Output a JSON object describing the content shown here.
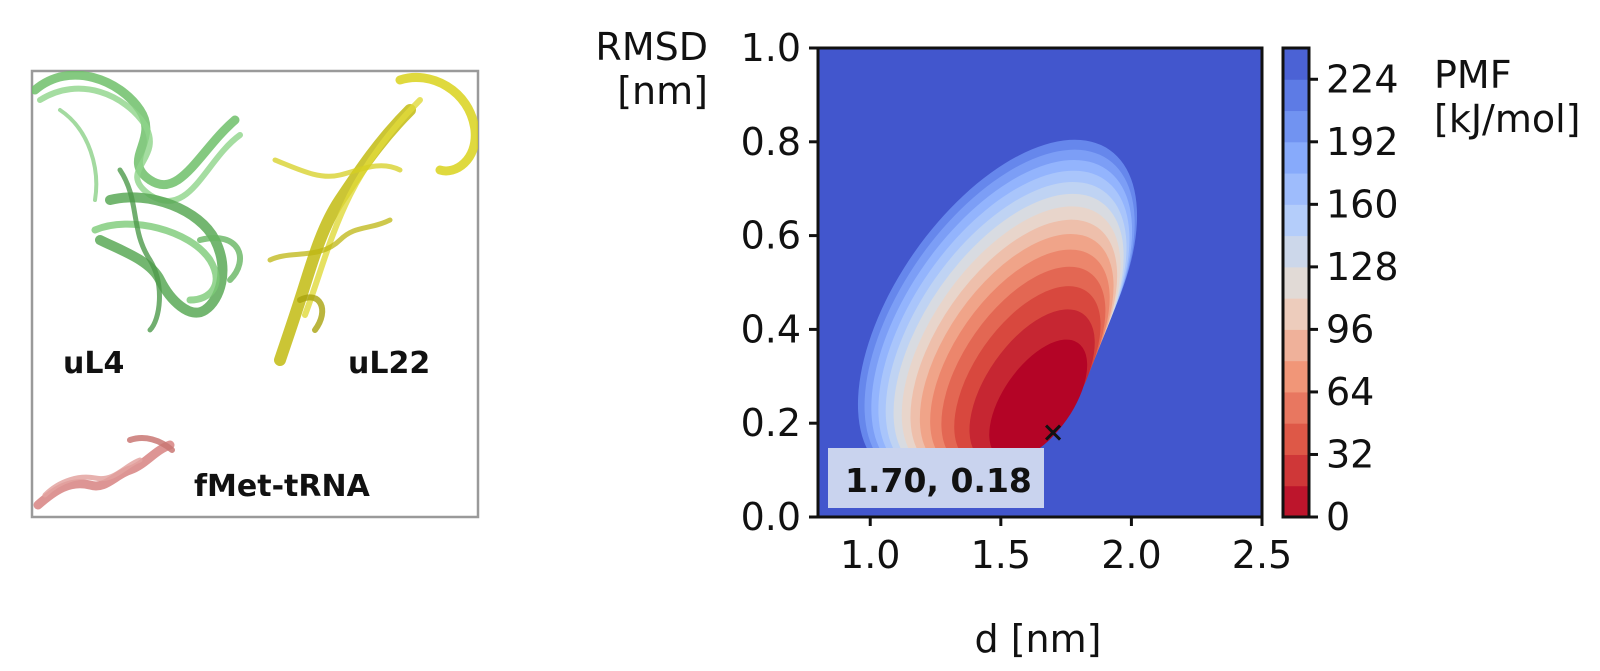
{
  "panel_left": {
    "labels": {
      "left_protein": "uL4",
      "right_protein": "uL22",
      "trna": "fMet-tRNA"
    }
  },
  "chart_data": {
    "type": "heatmap",
    "title": "",
    "xlabel": "d [nm]",
    "ylabel_line1": "RMSD",
    "ylabel_line2": "[nm]",
    "xlim": [
      0.8,
      2.5
    ],
    "ylim": [
      0.0,
      1.0
    ],
    "xticks": [
      "1.0",
      "1.5",
      "2.0",
      "2.5"
    ],
    "xtick_values": [
      1.0,
      1.5,
      2.0,
      2.5
    ],
    "yticks": [
      "0.0",
      "0.2",
      "0.4",
      "0.6",
      "0.8",
      "1.0"
    ],
    "ytick_values": [
      0.0,
      0.2,
      0.4,
      0.6,
      0.8,
      1.0
    ],
    "colorbar": {
      "label_line1": "PMF",
      "label_line2": "[kJ/mol]",
      "range": [
        0,
        240
      ],
      "ticks": [
        "0",
        "32",
        "64",
        "96",
        "128",
        "160",
        "192",
        "224"
      ],
      "tick_values": [
        0,
        32,
        64,
        96,
        128,
        160,
        192,
        224
      ],
      "colormap": "coolwarm_r",
      "levels": [
        0,
        16,
        32,
        48,
        64,
        80,
        96,
        112,
        128,
        144,
        160,
        176,
        192,
        208,
        224,
        240
      ]
    },
    "minimum": {
      "d": 1.7,
      "rmsd": 0.18,
      "label": "1.70, 0.18"
    },
    "grid": false
  }
}
